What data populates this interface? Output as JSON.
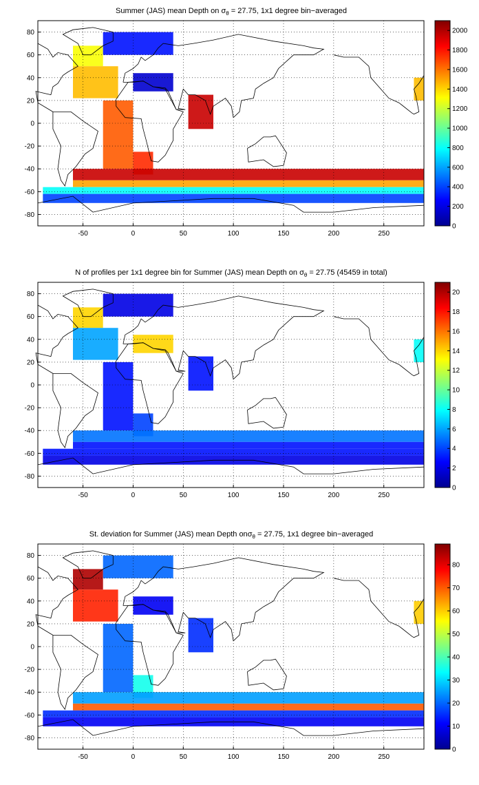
{
  "panels": [
    {
      "title_prefix": "Summer (JAS) mean Depth on ",
      "title_sigma": "σ",
      "title_sub": "θ",
      "title_suffix": " = 27.75, 1x1 degree bin−averaged",
      "colorbar": {
        "min": 0,
        "max": 2100,
        "ticks": [
          "0",
          "200",
          "400",
          "600",
          "800",
          "1000",
          "1200",
          "1400",
          "1600",
          "1800",
          "2000"
        ],
        "tick_values": [
          0,
          200,
          400,
          600,
          800,
          1000,
          1200,
          1400,
          1600,
          1800,
          2000
        ]
      }
    },
    {
      "title_prefix": "N of profiles per 1x1 degree bin for Summer (JAS) mean Depth on ",
      "title_sigma": "σ",
      "title_sub": "θ",
      "title_suffix": " = 27.75 (45459 in total)",
      "colorbar": {
        "min": 0,
        "max": 21,
        "ticks": [
          "0",
          "2",
          "4",
          "6",
          "8",
          "10",
          "12",
          "14",
          "16",
          "18",
          "20"
        ],
        "tick_values": [
          0,
          2,
          4,
          6,
          8,
          10,
          12,
          14,
          16,
          18,
          20
        ]
      }
    },
    {
      "title_prefix": "St. deviation for Summer (JAS) mean Depth on",
      "title_sigma": "σ",
      "title_sub": "θ",
      "title_suffix": " = 27.75, 1x1 degree bin−averaged",
      "colorbar": {
        "min": 0,
        "max": 89,
        "ticks": [
          "0",
          "10",
          "20",
          "30",
          "40",
          "50",
          "60",
          "70",
          "80"
        ],
        "tick_values": [
          0,
          10,
          20,
          30,
          40,
          50,
          60,
          70,
          80
        ]
      }
    }
  ],
  "axes": {
    "xlim": [
      -95,
      290
    ],
    "ylim": [
      -90,
      90
    ],
    "xticks": [
      "-50",
      "0",
      "50",
      "100",
      "150",
      "200",
      "250"
    ],
    "xtick_values": [
      -50,
      0,
      50,
      100,
      150,
      200,
      250
    ],
    "yticks": [
      "-80",
      "-60",
      "-40",
      "-20",
      "0",
      "20",
      "40",
      "60",
      "80"
    ],
    "ytick_values": [
      -80,
      -60,
      -40,
      -20,
      0,
      20,
      40,
      60,
      80
    ],
    "grid": "dotted"
  },
  "chart_data": [
    {
      "type": "heatmap",
      "title": "Summer (JAS) mean Depth on σθ = 27.75, 1x1 degree bin−averaged",
      "xlim": [
        -95,
        290
      ],
      "ylim": [
        -90,
        90
      ],
      "colorbar_range": [
        0,
        2100
      ],
      "colormap": "jet",
      "regions": [
        {
          "lon": [
            -60,
            -30
          ],
          "lat": [
            50,
            68
          ],
          "value": 1300
        },
        {
          "lon": [
            -60,
            -15
          ],
          "lat": [
            22,
            50
          ],
          "value": 1450
        },
        {
          "lon": [
            -30,
            0
          ],
          "lat": [
            -40,
            20
          ],
          "value": 1650
        },
        {
          "lon": [
            0,
            20
          ],
          "lat": [
            -45,
            -25
          ],
          "value": 1750
        },
        {
          "lon": [
            -30,
            40
          ],
          "lat": [
            60,
            80
          ],
          "value": 300
        },
        {
          "lon": [
            0,
            40
          ],
          "lat": [
            28,
            44
          ],
          "value": 150
        },
        {
          "lon": [
            55,
            80
          ],
          "lat": [
            -5,
            25
          ],
          "value": 1950
        },
        {
          "lon": [
            -60,
            290
          ],
          "lat": [
            -50,
            -40
          ],
          "value": 1950
        },
        {
          "lon": [
            -60,
            290
          ],
          "lat": [
            -56,
            -50
          ],
          "value": 1500
        },
        {
          "lon": [
            -90,
            290
          ],
          "lat": [
            -62,
            -56
          ],
          "value": 800
        },
        {
          "lon": [
            -90,
            290
          ],
          "lat": [
            -70,
            -62
          ],
          "value": 400
        },
        {
          "lon": [
            280,
            290
          ],
          "lat": [
            20,
            40
          ],
          "value": 1450
        }
      ]
    },
    {
      "type": "heatmap",
      "title": "N of profiles per 1x1 degree bin for Summer (JAS) mean Depth on σθ = 27.75 (45459 in total)",
      "xlim": [
        -95,
        290
      ],
      "ylim": [
        -90,
        90
      ],
      "colorbar_range": [
        0,
        21
      ],
      "colormap": "jet",
      "total_profiles": 45459,
      "regions": [
        {
          "lon": [
            -60,
            -30
          ],
          "lat": [
            50,
            68
          ],
          "value": 14
        },
        {
          "lon": [
            -60,
            -15
          ],
          "lat": [
            22,
            50
          ],
          "value": 6
        },
        {
          "lon": [
            -30,
            0
          ],
          "lat": [
            -40,
            20
          ],
          "value": 3
        },
        {
          "lon": [
            0,
            20
          ],
          "lat": [
            -45,
            -25
          ],
          "value": 4
        },
        {
          "lon": [
            -30,
            40
          ],
          "lat": [
            60,
            80
          ],
          "value": 2
        },
        {
          "lon": [
            0,
            40
          ],
          "lat": [
            28,
            44
          ],
          "value": 14
        },
        {
          "lon": [
            55,
            80
          ],
          "lat": [
            -5,
            25
          ],
          "value": 3
        },
        {
          "lon": [
            -60,
            290
          ],
          "lat": [
            -50,
            -40
          ],
          "value": 5
        },
        {
          "lon": [
            -60,
            290
          ],
          "lat": [
            -56,
            -50
          ],
          "value": 3
        },
        {
          "lon": [
            -90,
            290
          ],
          "lat": [
            -62,
            -56
          ],
          "value": 3
        },
        {
          "lon": [
            -90,
            290
          ],
          "lat": [
            -70,
            -62
          ],
          "value": 2
        },
        {
          "lon": [
            280,
            290
          ],
          "lat": [
            20,
            40
          ],
          "value": 8
        }
      ]
    },
    {
      "type": "heatmap",
      "title": "St. deviation for Summer (JAS) mean Depth onσθ = 27.75, 1x1 degree bin−averaged",
      "xlim": [
        -95,
        290
      ],
      "ylim": [
        -90,
        90
      ],
      "colorbar_range": [
        0,
        89
      ],
      "colormap": "jet",
      "regions": [
        {
          "lon": [
            -60,
            -30
          ],
          "lat": [
            50,
            68
          ],
          "value": 85
        },
        {
          "lon": [
            -60,
            -15
          ],
          "lat": [
            22,
            50
          ],
          "value": 75
        },
        {
          "lon": [
            -30,
            0
          ],
          "lat": [
            -40,
            20
          ],
          "value": 20
        },
        {
          "lon": [
            0,
            20
          ],
          "lat": [
            -45,
            -25
          ],
          "value": 35
        },
        {
          "lon": [
            -30,
            40
          ],
          "lat": [
            60,
            80
          ],
          "value": 20
        },
        {
          "lon": [
            0,
            40
          ],
          "lat": [
            28,
            44
          ],
          "value": 10
        },
        {
          "lon": [
            55,
            80
          ],
          "lat": [
            -5,
            25
          ],
          "value": 15
        },
        {
          "lon": [
            -60,
            290
          ],
          "lat": [
            -50,
            -40
          ],
          "value": 25
        },
        {
          "lon": [
            -60,
            290
          ],
          "lat": [
            -56,
            -50
          ],
          "value": 70
        },
        {
          "lon": [
            -90,
            290
          ],
          "lat": [
            -62,
            -56
          ],
          "value": 15
        },
        {
          "lon": [
            -90,
            290
          ],
          "lat": [
            -70,
            -62
          ],
          "value": 10
        },
        {
          "lon": [
            280,
            290
          ],
          "lat": [
            20,
            40
          ],
          "value": 60
        }
      ]
    }
  ]
}
